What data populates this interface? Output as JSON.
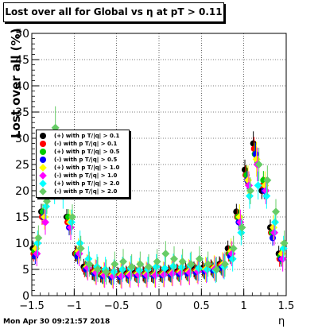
{
  "title": "Lost over all for Global vs   η at pT > 0.11",
  "footer": "Mon Apr 30 09:21:57 2018",
  "chart_data": {
    "type": "scatter",
    "xlabel": "η",
    "ylabel": "Lost over all (%)",
    "xlim": [
      -1.5,
      1.5
    ],
    "ylim": [
      0,
      50
    ],
    "xticks": [
      "−1.5",
      "−1",
      "−0.5",
      "0",
      "0.5",
      "1",
      "1.5"
    ],
    "yticks": [
      "0",
      "5",
      "10",
      "15",
      "20",
      "25",
      "30",
      "35",
      "40",
      "45",
      "50"
    ],
    "grid": true,
    "legend_position": "middle-left",
    "x": [
      -1.45,
      -1.35,
      -1.25,
      -1.15,
      -1.05,
      -0.95,
      -0.85,
      -0.75,
      -0.65,
      -0.55,
      -0.45,
      -0.35,
      -0.25,
      -0.15,
      -0.05,
      0.05,
      0.15,
      0.25,
      0.35,
      0.45,
      0.55,
      0.65,
      0.75,
      0.85,
      0.95,
      1.05,
      1.15,
      1.25,
      1.35,
      1.45
    ],
    "series": [
      {
        "name": "(+) with p T/|q| > 0.1",
        "color": "#000000",
        "marker": "circle",
        "values": [
          9,
          16,
          23,
          22,
          15,
          8,
          5.5,
          4.5,
          4,
          4,
          4,
          4.2,
          4.3,
          4.2,
          4.1,
          4.2,
          4.4,
          4.6,
          4.8,
          5,
          5.2,
          5.4,
          6,
          9,
          16,
          24,
          29,
          20,
          13,
          8
        ]
      },
      {
        "name": "(-) with p T/|q| > 0.1",
        "color": "#ff0000",
        "marker": "circle",
        "values": [
          8,
          15,
          22,
          23,
          14,
          8,
          5,
          4.5,
          4,
          3.8,
          3.8,
          4,
          4.1,
          4,
          4,
          4.1,
          4.2,
          4.4,
          4.5,
          4.7,
          4.9,
          5.2,
          5.8,
          8,
          15,
          23,
          28,
          21,
          12,
          7
        ]
      },
      {
        "name": "(+) with p T/|q| > 0.5",
        "color": "#00cc00",
        "marker": "circle",
        "values": [
          8.5,
          16,
          24,
          23,
          15,
          8,
          5.2,
          4.3,
          3.8,
          3.6,
          3.7,
          3.9,
          4,
          3.9,
          3.9,
          4,
          4.1,
          4.2,
          4.3,
          4.5,
          4.7,
          5,
          5.5,
          8,
          15,
          23,
          27,
          22,
          12,
          7.5
        ]
      },
      {
        "name": "(-) with p T/|q| > 0.5",
        "color": "#0000ff",
        "marker": "circle",
        "values": [
          7.5,
          15,
          21,
          22,
          13,
          7.5,
          5,
          4.2,
          3.7,
          3.5,
          3.6,
          3.8,
          3.9,
          3.8,
          3.8,
          3.9,
          4,
          4.1,
          4.2,
          4.4,
          4.6,
          4.8,
          5.3,
          7.5,
          14,
          22,
          27,
          20,
          11,
          7
        ]
      },
      {
        "name": "(+) with p T/|q| > 1.0",
        "color": "#ffff00",
        "marker": "diamond",
        "values": [
          9,
          15,
          23,
          22,
          14,
          8.5,
          5.5,
          4.6,
          4,
          3.9,
          3.9,
          4.1,
          4.2,
          4.1,
          4,
          4.1,
          4.3,
          4.5,
          4.6,
          4.8,
          5,
          5.3,
          5.9,
          8.5,
          15,
          22,
          26,
          21,
          13,
          8
        ]
      },
      {
        "name": "(-) with p T/|q| > 1.0",
        "color": "#ff00ff",
        "marker": "diamond",
        "values": [
          8,
          14,
          21,
          21,
          13,
          8,
          5.3,
          4.4,
          3.9,
          3.7,
          3.7,
          3.9,
          4,
          3.9,
          3.9,
          4,
          4.2,
          4.3,
          4.4,
          4.6,
          4.8,
          5.1,
          5.7,
          8,
          14,
          21,
          25,
          20,
          12,
          7
        ]
      },
      {
        "name": "(+) with p T/|q| > 2.0",
        "color": "#00ffff",
        "marker": "diamond",
        "values": [
          10,
          17,
          20,
          19,
          14,
          10,
          7,
          5.5,
          5,
          4.5,
          5,
          5.2,
          4.8,
          5,
          5.5,
          5.2,
          5.6,
          5.4,
          5.8,
          5.2,
          5,
          4.8,
          5.5,
          7,
          12,
          19,
          21,
          19,
          14,
          9
        ]
      },
      {
        "name": "(-) with p T/|q| > 2.0",
        "color": "#66cc66",
        "marker": "diamond",
        "values": [
          11,
          18,
          32,
          24,
          15,
          9,
          6,
          5,
          4.5,
          6,
          6.5,
          5.5,
          6,
          5.5,
          6.5,
          8,
          7,
          6.5,
          6,
          7,
          6,
          5,
          6,
          9,
          13,
          20,
          25,
          22,
          16,
          10
        ]
      }
    ]
  }
}
